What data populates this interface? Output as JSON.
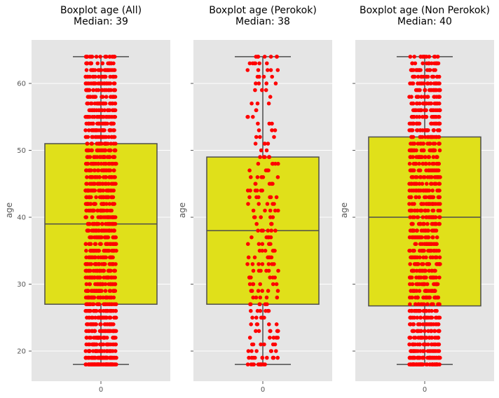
{
  "chart_data": [
    {
      "type": "boxplot",
      "title_line1": "Boxplot age (All)",
      "title_line2": "Median: 39",
      "ylabel": "age",
      "categories": [
        "0"
      ],
      "ylim": [
        15.5,
        66.5
      ],
      "yticks": [
        20,
        30,
        40,
        50,
        60
      ],
      "show_yticklabels": true,
      "grid": true,
      "box": {
        "min": 18,
        "q1": 27,
        "median": 39,
        "q3": 51,
        "max": 64
      },
      "strip_ages": [
        18,
        19,
        20,
        21,
        22,
        23,
        24,
        25,
        26,
        27,
        28,
        29,
        30,
        31,
        32,
        33,
        34,
        35,
        36,
        37,
        38,
        39,
        40,
        41,
        42,
        43,
        44,
        45,
        46,
        47,
        48,
        49,
        50,
        51,
        52,
        53,
        54,
        55,
        56,
        57,
        58,
        59,
        60,
        61,
        62,
        63,
        64
      ],
      "strip_counts": [
        69,
        68,
        29,
        28,
        28,
        28,
        28,
        28,
        28,
        27,
        27,
        27,
        27,
        27,
        27,
        27,
        26,
        26,
        26,
        26,
        26,
        25,
        25,
        25,
        25,
        25,
        25,
        25,
        25,
        25,
        24,
        24,
        24,
        24,
        24,
        24,
        24,
        24,
        24,
        24,
        22,
        21,
        21,
        21,
        21,
        21,
        20
      ]
    },
    {
      "type": "boxplot",
      "title_line1": "Boxplot age (Perokok)",
      "title_line2": "Median: 38",
      "ylabel": "age",
      "categories": [
        "0"
      ],
      "ylim": [
        15.5,
        66.5
      ],
      "yticks": [
        20,
        30,
        40,
        50,
        60
      ],
      "show_yticklabels": false,
      "grid": true,
      "box": {
        "min": 18,
        "q1": 27,
        "median": 38,
        "q3": 49,
        "max": 64
      },
      "strip_ages": [
        18,
        19,
        20,
        21,
        22,
        23,
        24,
        25,
        26,
        27,
        28,
        29,
        30,
        31,
        32,
        33,
        34,
        35,
        36,
        37,
        38,
        39,
        40,
        41,
        42,
        43,
        44,
        45,
        46,
        47,
        48,
        49,
        50,
        51,
        52,
        53,
        54,
        55,
        56,
        57,
        58,
        59,
        60,
        61,
        62,
        63,
        64
      ],
      "strip_counts": [
        12,
        11,
        6,
        6,
        5,
        7,
        5,
        5,
        6,
        6,
        5,
        6,
        6,
        6,
        6,
        7,
        6,
        6,
        6,
        5,
        6,
        4,
        5,
        5,
        5,
        6,
        6,
        6,
        5,
        4,
        5,
        5,
        2,
        4,
        3,
        3,
        3,
        3,
        2,
        3,
        1,
        3,
        4,
        4,
        5,
        6,
        7
      ]
    },
    {
      "type": "boxplot",
      "title_line1": "Boxplot age (Non Perokok)",
      "title_line2": "Median: 40",
      "ylabel": "age",
      "categories": [
        "0"
      ],
      "ylim": [
        15.5,
        66.5
      ],
      "yticks": [
        20,
        30,
        40,
        50,
        60
      ],
      "show_yticklabels": false,
      "grid": true,
      "box": {
        "min": 18,
        "q1": 26.75,
        "median": 40,
        "q3": 52,
        "max": 64
      },
      "strip_ages": [
        18,
        19,
        20,
        21,
        22,
        23,
        24,
        25,
        26,
        27,
        28,
        29,
        30,
        31,
        32,
        33,
        34,
        35,
        36,
        37,
        38,
        39,
        40,
        41,
        42,
        43,
        44,
        45,
        46,
        47,
        48,
        49,
        50,
        51,
        52,
        53,
        54,
        55,
        56,
        57,
        58,
        59,
        60,
        61,
        62,
        63,
        64
      ],
      "strip_counts": [
        57,
        57,
        23,
        22,
        23,
        21,
        23,
        23,
        22,
        21,
        22,
        21,
        21,
        21,
        21,
        20,
        20,
        20,
        20,
        21,
        20,
        21,
        20,
        20,
        20,
        19,
        19,
        19,
        20,
        21,
        19,
        19,
        22,
        20,
        21,
        21,
        21,
        21,
        22,
        21,
        21,
        18,
        17,
        17,
        16,
        15,
        13
      ]
    }
  ],
  "colors": {
    "panel_bg": "#e5e5e5",
    "grid": "#ffffff",
    "box_fill": "#e0e01a",
    "box_edge": "#4d4d4d",
    "points": "#ff0000",
    "tick_text": "#555555",
    "title_text": "#000000"
  }
}
